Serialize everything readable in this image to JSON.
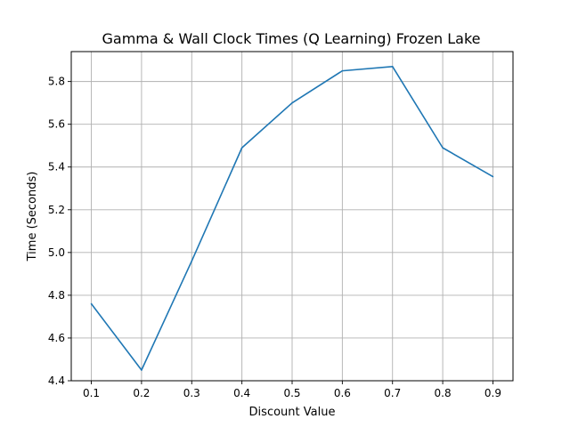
{
  "chart_data": {
    "type": "line",
    "title": "Gamma & Wall Clock Times (Q Learning) Frozen Lake",
    "xlabel": "Discount Value",
    "ylabel": "Time (Seconds)",
    "x": [
      0.1,
      0.2,
      0.3,
      0.4,
      0.5,
      0.6,
      0.7,
      0.8,
      0.9
    ],
    "series": [
      {
        "values": [
          4.76,
          4.45,
          4.96,
          5.49,
          5.7,
          5.85,
          5.87,
          5.49,
          5.355
        ]
      }
    ],
    "xlim": [
      0.06,
      0.94
    ],
    "ylim": [
      4.4,
      5.94
    ],
    "xticks": [
      0.1,
      0.2,
      0.3,
      0.4,
      0.5,
      0.6,
      0.7,
      0.8,
      0.9
    ],
    "xtick_labels": [
      "0.1",
      "0.2",
      "0.3",
      "0.4",
      "0.5",
      "0.6",
      "0.7",
      "0.8",
      "0.9"
    ],
    "yticks": [
      4.4,
      4.6,
      4.8,
      5.0,
      5.2,
      5.4,
      5.6,
      5.8
    ],
    "ytick_labels": [
      "4.4",
      "4.6",
      "4.8",
      "5.0",
      "5.2",
      "5.4",
      "5.6",
      "5.8"
    ],
    "grid": true,
    "line_color": "#1f77b4"
  }
}
